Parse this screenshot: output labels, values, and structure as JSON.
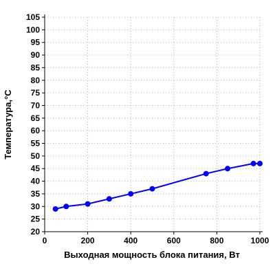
{
  "chart_data": {
    "type": "line",
    "xlabel": "Выходная мощность блока питания, Вт",
    "ylabel": "Температура,°C",
    "xlim": [
      0,
      1000
    ],
    "ylim": [
      20,
      105
    ],
    "x_ticks": [
      0,
      200,
      400,
      600,
      800,
      1000
    ],
    "y_ticks": [
      20,
      25,
      30,
      35,
      40,
      45,
      50,
      55,
      60,
      65,
      70,
      75,
      80,
      85,
      90,
      95,
      100,
      105
    ],
    "grid": true,
    "series": [
      {
        "color": "#0000ff",
        "x": [
          50,
          100,
          200,
          300,
          400,
          500,
          750,
          850,
          970,
          1000
        ],
        "y": [
          29,
          30,
          31,
          33,
          35,
          37,
          43,
          45,
          47,
          47
        ]
      }
    ]
  }
}
